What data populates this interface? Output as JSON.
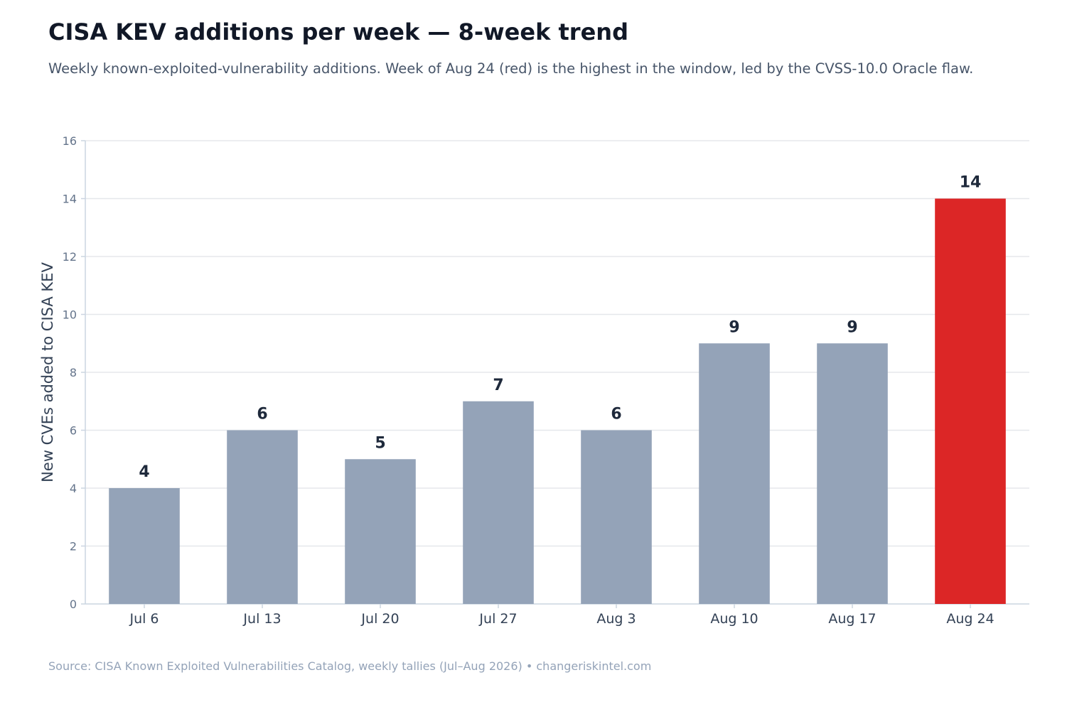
{
  "header": {
    "title": "CISA KEV additions per week — 8-week trend",
    "subtitle": "Weekly known-exploited-vulnerability additions. Week of Aug 24 (red) is the highest in the window, led by the CVSS-10.0 Oracle flaw."
  },
  "footer": {
    "source": "Source: CISA Known Exploited Vulnerabilities Catalog, weekly tallies (Jul–Aug 2026)  •  changeriskintel.com"
  },
  "chart_data": {
    "type": "bar",
    "categories": [
      "Jul 6",
      "Jul 13",
      "Jul 20",
      "Jul 27",
      "Aug 3",
      "Aug 10",
      "Aug 17",
      "Aug 24"
    ],
    "values": [
      4,
      6,
      5,
      7,
      6,
      9,
      9,
      14
    ],
    "highlight_index": 7,
    "ylabel": "New CVEs added to CISA KEV",
    "ylim": [
      0,
      16
    ],
    "yticks": [
      0,
      2,
      4,
      6,
      8,
      10,
      12,
      14,
      16
    ],
    "grid": true,
    "colors": {
      "bar": "#94a3b8",
      "highlight": "#dc2626",
      "grid": "#e5e7eb",
      "axis": "#cbd5e1"
    }
  }
}
